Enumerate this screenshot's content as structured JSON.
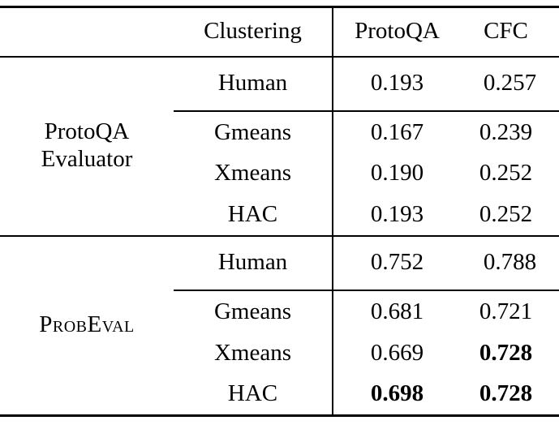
{
  "table": {
    "columns": [
      "",
      "Clustering",
      "ProtoQA",
      "CFC"
    ],
    "sections": [
      {
        "group_label": "ProtoQA Evaluator",
        "rows": [
          {
            "method": "Human",
            "protoqa": "0.193",
            "cfc": "0.257",
            "protoqa_bold": false,
            "cfc_bold": false
          },
          {
            "method": "Gmeans",
            "protoqa": "0.167",
            "cfc": "0.239",
            "protoqa_bold": false,
            "cfc_bold": false
          },
          {
            "method": "Xmeans",
            "protoqa": "0.190",
            "cfc": "0.252",
            "protoqa_bold": false,
            "cfc_bold": false
          },
          {
            "method": "HAC",
            "protoqa": "0.193",
            "cfc": "0.252",
            "protoqa_bold": false,
            "cfc_bold": false
          }
        ]
      },
      {
        "group_label": "ProbEval",
        "rows": [
          {
            "method": "Human",
            "protoqa": "0.752",
            "cfc": "0.788",
            "protoqa_bold": false,
            "cfc_bold": false
          },
          {
            "method": "Gmeans",
            "protoqa": "0.681",
            "cfc": "0.721",
            "protoqa_bold": false,
            "cfc_bold": false
          },
          {
            "method": "Xmeans",
            "protoqa": "0.669",
            "cfc": "0.728",
            "protoqa_bold": false,
            "cfc_bold": true
          },
          {
            "method": "HAC",
            "protoqa": "0.698",
            "cfc": "0.728",
            "protoqa_bold": true,
            "cfc_bold": true
          }
        ]
      }
    ]
  }
}
